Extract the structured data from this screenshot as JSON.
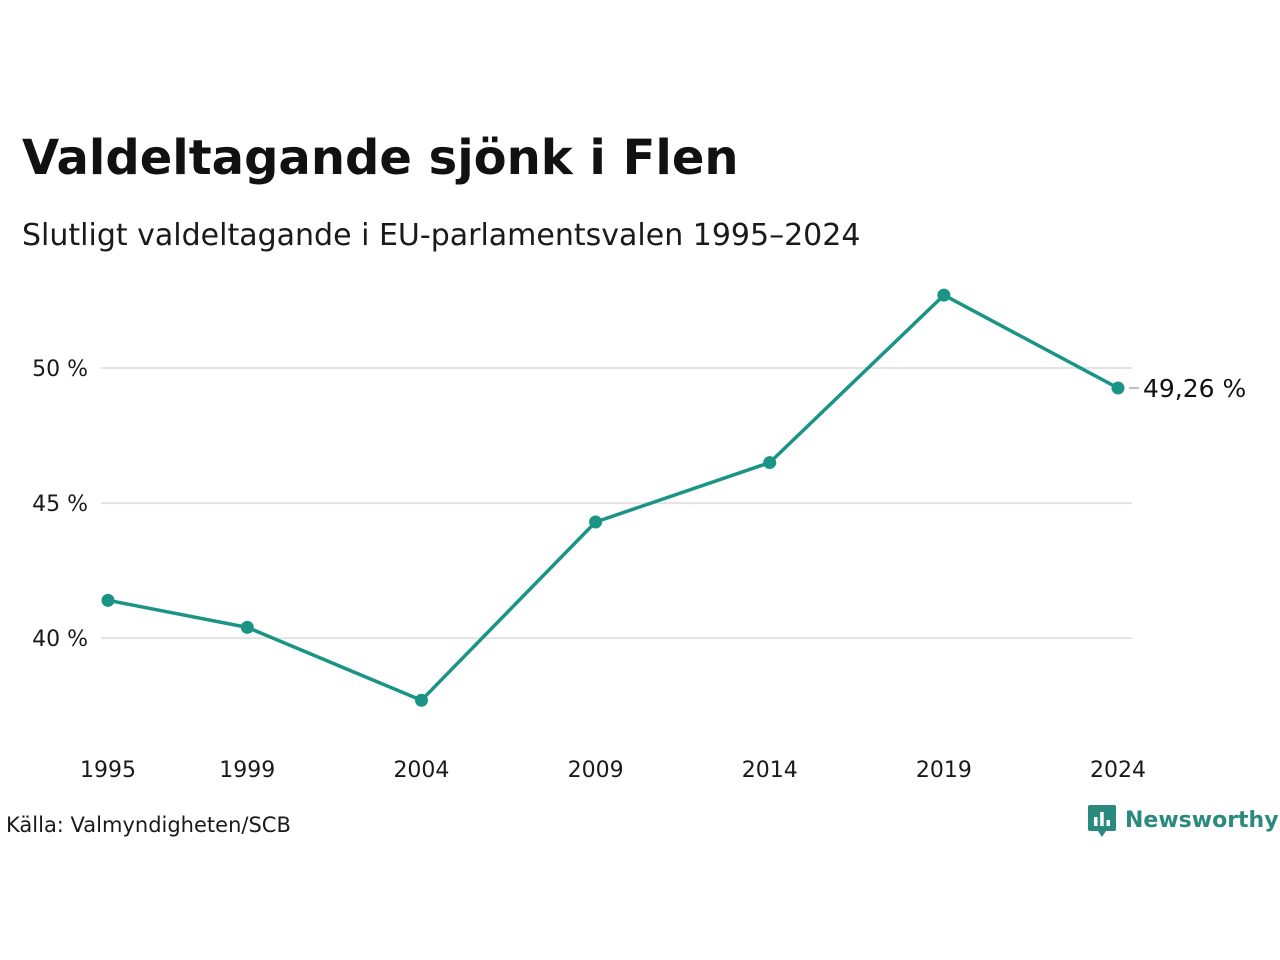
{
  "title": "Valdeltagande sjönk i Flen",
  "subtitle": "Slutligt valdeltagande i EU-parlamentsvalen 1995–2024",
  "source": "Källa: Valmyndigheten/SCB",
  "brand": {
    "name": "Newsworthy",
    "icon": "newsworthy-logo-icon",
    "color": "#2a8a7e"
  },
  "colors": {
    "line": "#1a9484",
    "grid": "#e3e3e3",
    "text": "#1a1a1a"
  },
  "chart_data": {
    "type": "line",
    "title": "Valdeltagande sjönk i Flen",
    "subtitle": "Slutligt valdeltagande i EU-parlamentsvalen 1995–2024",
    "x": [
      1995,
      1999,
      2004,
      2009,
      2014,
      2019,
      2024
    ],
    "x_tick_labels": [
      "1995",
      "1999",
      "2004",
      "2009",
      "2014",
      "2019",
      "2024"
    ],
    "series": [
      {
        "values": [
          41.4,
          40.4,
          37.7,
          44.3,
          46.5,
          52.7,
          49.26
        ]
      }
    ],
    "y_ticks": [
      40,
      45,
      50
    ],
    "y_tick_labels": [
      "40 %",
      "45 %",
      "50 %"
    ],
    "ylim": [
      36.6,
      54.0
    ],
    "xlim": [
      1995,
      2024
    ],
    "grid": true,
    "end_label": "49,26 %"
  }
}
